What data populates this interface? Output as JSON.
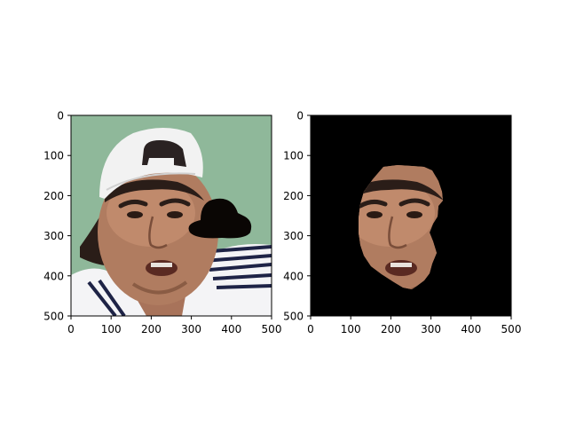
{
  "panels": [
    {
      "id": "original",
      "x_ticks": [
        "0",
        "100",
        "200",
        "300",
        "400",
        "500"
      ],
      "y_ticks": [
        "0",
        "100",
        "200",
        "300",
        "400",
        "500"
      ]
    },
    {
      "id": "masked",
      "x_ticks": [
        "0",
        "100",
        "200",
        "300",
        "400",
        "500"
      ],
      "y_ticks": [
        "0",
        "100",
        "200",
        "300",
        "400",
        "500"
      ]
    }
  ],
  "colors": {
    "background": "#8fb89a",
    "skin": "#b07c60",
    "cap": "#f2f2f2",
    "shirt": "#f4f4f6",
    "stripes": "#1e2346",
    "hair": "#2a1d18",
    "mask_bg": "#000000",
    "occluder": "#0a0604"
  }
}
